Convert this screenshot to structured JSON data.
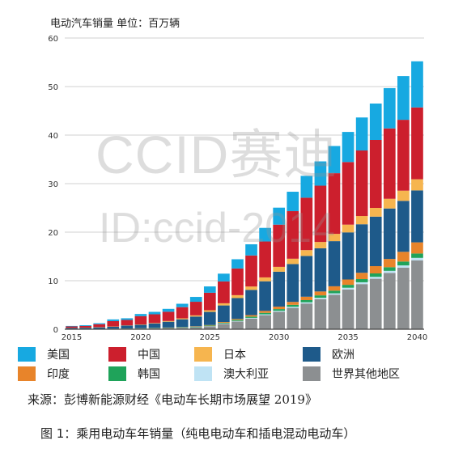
{
  "header": {
    "unit_label": "电动汽车销量    单位：百万辆"
  },
  "watermark": {
    "line1": "CCID赛迪",
    "line2": "ID:ccid-2014"
  },
  "source": "来源：彭博新能源财经《电动车长期市场展望 2019》",
  "caption": "图 1：乘用电动车年销量（纯电电动车和插电混动电动车）",
  "colors": {
    "美国": "#17a9e1",
    "中国": "#cc1f2d",
    "日本": "#f6b54f",
    "欧洲": "#1e5a8a",
    "印度": "#e8842a",
    "韩国": "#1fa35a",
    "澳大利亚": "#bfe3f4",
    "世界其他地区": "#8c8f91"
  },
  "chart_data": {
    "type": "bar",
    "stacked": true,
    "x": [
      2015,
      2016,
      2017,
      2018,
      2019,
      2020,
      2021,
      2022,
      2023,
      2024,
      2025,
      2026,
      2027,
      2028,
      2029,
      2030,
      2031,
      2032,
      2033,
      2034,
      2035,
      2036,
      2037,
      2038,
      2039,
      2040
    ],
    "xticks": [
      "2015",
      "2020",
      "2025",
      "2030",
      "2035",
      "2040"
    ],
    "ylim": [
      0,
      60
    ],
    "yticks": [
      "0",
      "10",
      "20",
      "30",
      "40",
      "50",
      "60"
    ],
    "grid": true,
    "legend_position": "bottom",
    "series": [
      {
        "name": "世界其他地区",
        "values": [
          0.05,
          0.05,
          0.08,
          0.1,
          0.12,
          0.15,
          0.2,
          0.25,
          0.3,
          0.4,
          0.6,
          1.1,
          1.6,
          2.2,
          2.9,
          3.6,
          4.4,
          5.3,
          6.2,
          7.1,
          8.2,
          9.3,
          10.4,
          11.6,
          12.7,
          14.2
        ]
      },
      {
        "name": "澳大利亚",
        "values": [
          0,
          0,
          0,
          0,
          0,
          0,
          0,
          0,
          0.02,
          0.03,
          0.05,
          0.1,
          0.12,
          0.15,
          0.18,
          0.2,
          0.23,
          0.25,
          0.28,
          0.3,
          0.35,
          0.38,
          0.4,
          0.43,
          0.45,
          0.5
        ]
      },
      {
        "name": "韩国",
        "values": [
          0,
          0,
          0.01,
          0.02,
          0.03,
          0.04,
          0.05,
          0.06,
          0.08,
          0.1,
          0.12,
          0.15,
          0.2,
          0.25,
          0.3,
          0.35,
          0.4,
          0.45,
          0.5,
          0.55,
          0.6,
          0.65,
          0.7,
          0.75,
          0.8,
          0.9
        ]
      },
      {
        "name": "印度",
        "values": [
          0,
          0,
          0,
          0,
          0.01,
          0.02,
          0.03,
          0.04,
          0.05,
          0.08,
          0.1,
          0.15,
          0.2,
          0.3,
          0.4,
          0.5,
          0.6,
          0.7,
          0.8,
          0.9,
          1.1,
          1.3,
          1.5,
          1.7,
          2.0,
          2.3
        ]
      },
      {
        "name": "欧洲",
        "values": [
          0.2,
          0.25,
          0.3,
          0.4,
          0.6,
          0.7,
          0.9,
          1.2,
          1.6,
          2.0,
          2.7,
          3.4,
          4.3,
          5.2,
          6.1,
          7.2,
          7.8,
          8.4,
          8.9,
          9.3,
          9.7,
          10.0,
          10.2,
          10.4,
          10.5,
          10.7
        ]
      },
      {
        "name": "日本",
        "values": [
          0.03,
          0.03,
          0.05,
          0.05,
          0.05,
          0.08,
          0.1,
          0.15,
          0.2,
          0.25,
          0.35,
          0.45,
          0.6,
          0.7,
          0.8,
          1.0,
          1.1,
          1.2,
          1.3,
          1.5,
          1.6,
          1.7,
          1.8,
          2.0,
          2.1,
          2.3
        ]
      },
      {
        "name": "中国",
        "values": [
          0.3,
          0.35,
          0.6,
          1.1,
          1.1,
          1.7,
          1.8,
          1.9,
          2.3,
          2.8,
          3.6,
          4.5,
          5.5,
          6.4,
          7.4,
          8.7,
          9.8,
          10.8,
          11.6,
          12.5,
          12.9,
          13.5,
          14.0,
          14.5,
          14.6,
          14.8
        ]
      },
      {
        "name": "美国",
        "values": [
          0.1,
          0.15,
          0.2,
          0.35,
          0.35,
          0.45,
          0.5,
          0.6,
          0.7,
          1.0,
          1.3,
          1.6,
          1.9,
          2.3,
          2.8,
          3.5,
          4.0,
          4.5,
          5.0,
          5.6,
          6.2,
          6.8,
          7.5,
          8.3,
          9.0,
          9.5
        ]
      }
    ]
  }
}
